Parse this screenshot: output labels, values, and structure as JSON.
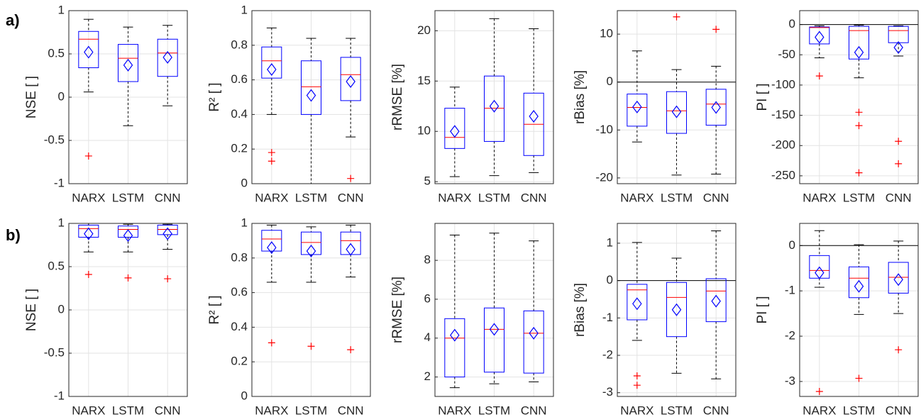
{
  "row_labels": [
    "a)",
    "b)"
  ],
  "colors": {
    "box": "#0000ff",
    "median": "#ff0000",
    "whisker": "#000000",
    "outlier": "#ff0000",
    "mean": "#0000ff",
    "zero_line": "#000000"
  },
  "chart_data": [
    {
      "type": "box",
      "ylabel": "NSE [ ]",
      "categories": [
        "NARX",
        "LSTM",
        "CNN"
      ],
      "ylim": [
        -1,
        1
      ],
      "yticks": [
        -1,
        -0.5,
        0,
        0.5,
        1
      ],
      "grid": true,
      "zero_line": false,
      "boxes": [
        {
          "whisker_low": 0.06,
          "q1": 0.34,
          "median": 0.67,
          "q3": 0.76,
          "whisker_high": 0.9,
          "mean": 0.52,
          "outliers": [
            -0.68
          ]
        },
        {
          "whisker_low": -0.33,
          "q1": 0.18,
          "median": 0.45,
          "q3": 0.61,
          "whisker_high": 0.81,
          "mean": 0.37,
          "outliers": []
        },
        {
          "whisker_low": -0.1,
          "q1": 0.24,
          "median": 0.51,
          "q3": 0.67,
          "whisker_high": 0.83,
          "mean": 0.46,
          "outliers": []
        }
      ]
    },
    {
      "type": "box",
      "ylabel": "R² [ ]",
      "categories": [
        "NARX",
        "LSTM",
        "CNN"
      ],
      "ylim": [
        0,
        1
      ],
      "yticks": [
        0,
        0.2,
        0.4,
        0.6,
        0.8,
        1
      ],
      "grid": true,
      "zero_line": false,
      "boxes": [
        {
          "whisker_low": 0.4,
          "q1": 0.61,
          "median": 0.71,
          "q3": 0.79,
          "whisker_high": 0.9,
          "mean": 0.66,
          "outliers": [
            0.18,
            0.13
          ]
        },
        {
          "whisker_low": 0.0,
          "q1": 0.4,
          "median": 0.56,
          "q3": 0.71,
          "whisker_high": 0.84,
          "mean": 0.51,
          "outliers": []
        },
        {
          "whisker_low": 0.27,
          "q1": 0.48,
          "median": 0.63,
          "q3": 0.73,
          "whisker_high": 0.84,
          "mean": 0.59,
          "outliers": [
            0.03
          ]
        }
      ]
    },
    {
      "type": "box",
      "ylabel": "rRMSE [%]",
      "categories": [
        "NARX",
        "LSTM",
        "CNN"
      ],
      "ylim": [
        4.8,
        22
      ],
      "yticks": [
        5,
        10,
        15,
        20
      ],
      "grid": true,
      "zero_line": false,
      "boxes": [
        {
          "whisker_low": 5.5,
          "q1": 8.3,
          "median": 9.4,
          "q3": 12.3,
          "whisker_high": 14.4,
          "mean": 10.0,
          "outliers": []
        },
        {
          "whisker_low": 5.6,
          "q1": 9.0,
          "median": 12.3,
          "q3": 15.5,
          "whisker_high": 21.2,
          "mean": 12.5,
          "outliers": []
        },
        {
          "whisker_low": 5.9,
          "q1": 7.6,
          "median": 10.7,
          "q3": 13.8,
          "whisker_high": 20.2,
          "mean": 11.5,
          "outliers": []
        }
      ]
    },
    {
      "type": "box",
      "ylabel": "rBias [%]",
      "categories": [
        "NARX",
        "LSTM",
        "CNN"
      ],
      "ylim": [
        -21.2,
        14.9
      ],
      "yticks": [
        -20,
        -10,
        0,
        10
      ],
      "grid": true,
      "zero_line": true,
      "boxes": [
        {
          "whisker_low": -12.5,
          "q1": -9.2,
          "median": -5.3,
          "q3": -2.5,
          "whisker_high": 6.5,
          "mean": -5.2,
          "outliers": []
        },
        {
          "whisker_low": -19.4,
          "q1": -10.7,
          "median": -6.0,
          "q3": -2.0,
          "whisker_high": 2.6,
          "mean": -6.2,
          "outliers": [
            13.6
          ]
        },
        {
          "whisker_low": -19.2,
          "q1": -9.0,
          "median": -4.6,
          "q3": -1.5,
          "whisker_high": 3.3,
          "mean": -5.3,
          "outliers": [
            11.0
          ]
        }
      ]
    },
    {
      "type": "box",
      "ylabel": "PI [ ]",
      "categories": [
        "NARX",
        "LSTM",
        "CNN"
      ],
      "ylim": [
        -263,
        23
      ],
      "yticks": [
        -250,
        -200,
        -150,
        -100,
        -50,
        0
      ],
      "grid": true,
      "zero_line": true,
      "boxes": [
        {
          "whisker_low": -55,
          "q1": -32,
          "median": -5,
          "q3": -4,
          "whisker_high": -2,
          "mean": -21,
          "outliers": [
            -85
          ]
        },
        {
          "whisker_low": -88,
          "q1": -57,
          "median": -10,
          "q3": -3,
          "whisker_high": -1,
          "mean": -46,
          "outliers": [
            -145,
            -167,
            -245
          ]
        },
        {
          "whisker_low": -52,
          "q1": -30,
          "median": -10,
          "q3": -3,
          "whisker_high": -2,
          "mean": -38,
          "outliers": [
            -193,
            -230
          ]
        }
      ]
    },
    {
      "type": "box",
      "ylabel": "NSE [ ]",
      "categories": [
        "NARX",
        "LSTM",
        "CNN"
      ],
      "ylim": [
        -1,
        1
      ],
      "yticks": [
        -1,
        -0.5,
        0,
        0.5,
        1
      ],
      "grid": true,
      "zero_line": false,
      "boxes": [
        {
          "whisker_low": 0.67,
          "q1": 0.84,
          "median": 0.94,
          "q3": 0.98,
          "whisker_high": 1.0,
          "mean": 0.88,
          "outliers": [
            0.41
          ]
        },
        {
          "whisker_low": 0.67,
          "q1": 0.84,
          "median": 0.93,
          "q3": 0.97,
          "whisker_high": 0.99,
          "mean": 0.86,
          "outliers": [
            0.37
          ]
        },
        {
          "whisker_low": 0.7,
          "q1": 0.87,
          "median": 0.93,
          "q3": 0.98,
          "whisker_high": 0.99,
          "mean": 0.88,
          "outliers": [
            0.36
          ]
        }
      ]
    },
    {
      "type": "box",
      "ylabel": "R² [ ]",
      "categories": [
        "NARX",
        "LSTM",
        "CNN"
      ],
      "ylim": [
        0,
        1
      ],
      "yticks": [
        0,
        0.2,
        0.4,
        0.6,
        0.8,
        1
      ],
      "grid": true,
      "zero_line": false,
      "boxes": [
        {
          "whisker_low": 0.66,
          "q1": 0.84,
          "median": 0.91,
          "q3": 0.96,
          "whisker_high": 0.99,
          "mean": 0.86,
          "outliers": [
            0.31
          ]
        },
        {
          "whisker_low": 0.66,
          "q1": 0.82,
          "median": 0.89,
          "q3": 0.95,
          "whisker_high": 0.98,
          "mean": 0.84,
          "outliers": [
            0.29
          ]
        },
        {
          "whisker_low": 0.69,
          "q1": 0.82,
          "median": 0.9,
          "q3": 0.95,
          "whisker_high": 0.99,
          "mean": 0.85,
          "outliers": [
            0.27
          ]
        }
      ]
    },
    {
      "type": "box",
      "ylabel": "rRMSE [%]",
      "categories": [
        "NARX",
        "LSTM",
        "CNN"
      ],
      "ylim": [
        1,
        9.9
      ],
      "yticks": [
        2,
        4,
        6,
        8
      ],
      "grid": true,
      "zero_line": false,
      "boxes": [
        {
          "whisker_low": 1.45,
          "q1": 2.0,
          "median": 4.0,
          "q3": 5.0,
          "whisker_high": 9.3,
          "mean": 4.15,
          "outliers": []
        },
        {
          "whisker_low": 1.65,
          "q1": 2.25,
          "median": 4.45,
          "q3": 5.55,
          "whisker_high": 9.4,
          "mean": 4.45,
          "outliers": []
        },
        {
          "whisker_low": 1.75,
          "q1": 2.2,
          "median": 4.25,
          "q3": 5.4,
          "whisker_high": 9.0,
          "mean": 4.25,
          "outliers": []
        }
      ]
    },
    {
      "type": "box",
      "ylabel": "rBias [%]",
      "categories": [
        "NARX",
        "LSTM",
        "CNN"
      ],
      "ylim": [
        -3.1,
        1.53
      ],
      "yticks": [
        -3,
        -2,
        -1,
        0,
        1
      ],
      "grid": true,
      "zero_line": true,
      "boxes": [
        {
          "whisker_low": -1.6,
          "q1": -1.05,
          "median": -0.25,
          "q3": -0.1,
          "whisker_high": 1.02,
          "mean": -0.62,
          "outliers": [
            -2.55,
            -2.8
          ]
        },
        {
          "whisker_low": -2.48,
          "q1": -1.5,
          "median": -0.45,
          "q3": -0.05,
          "whisker_high": 0.6,
          "mean": -0.78,
          "outliers": []
        },
        {
          "whisker_low": -2.63,
          "q1": -1.1,
          "median": -0.28,
          "q3": 0.05,
          "whisker_high": 1.33,
          "mean": -0.55,
          "outliers": []
        }
      ]
    },
    {
      "type": "box",
      "ylabel": "PI [ ]",
      "categories": [
        "NARX",
        "LSTM",
        "CNN"
      ],
      "ylim": [
        -3.33,
        0.49
      ],
      "yticks": [
        -3,
        -2,
        -1,
        0
      ],
      "grid": true,
      "zero_line": true,
      "boxes": [
        {
          "whisker_low": -0.92,
          "q1": -0.72,
          "median": -0.55,
          "q3": -0.22,
          "whisker_high": 0.33,
          "mean": -0.6,
          "outliers": [
            -3.22
          ]
        },
        {
          "whisker_low": -1.52,
          "q1": -1.15,
          "median": -0.72,
          "q3": -0.47,
          "whisker_high": 0.02,
          "mean": -0.9,
          "outliers": [
            -2.93
          ]
        },
        {
          "whisker_low": -1.5,
          "q1": -1.05,
          "median": -0.7,
          "q3": -0.37,
          "whisker_high": 0.1,
          "mean": -0.75,
          "outliers": [
            -2.3
          ]
        }
      ]
    }
  ]
}
